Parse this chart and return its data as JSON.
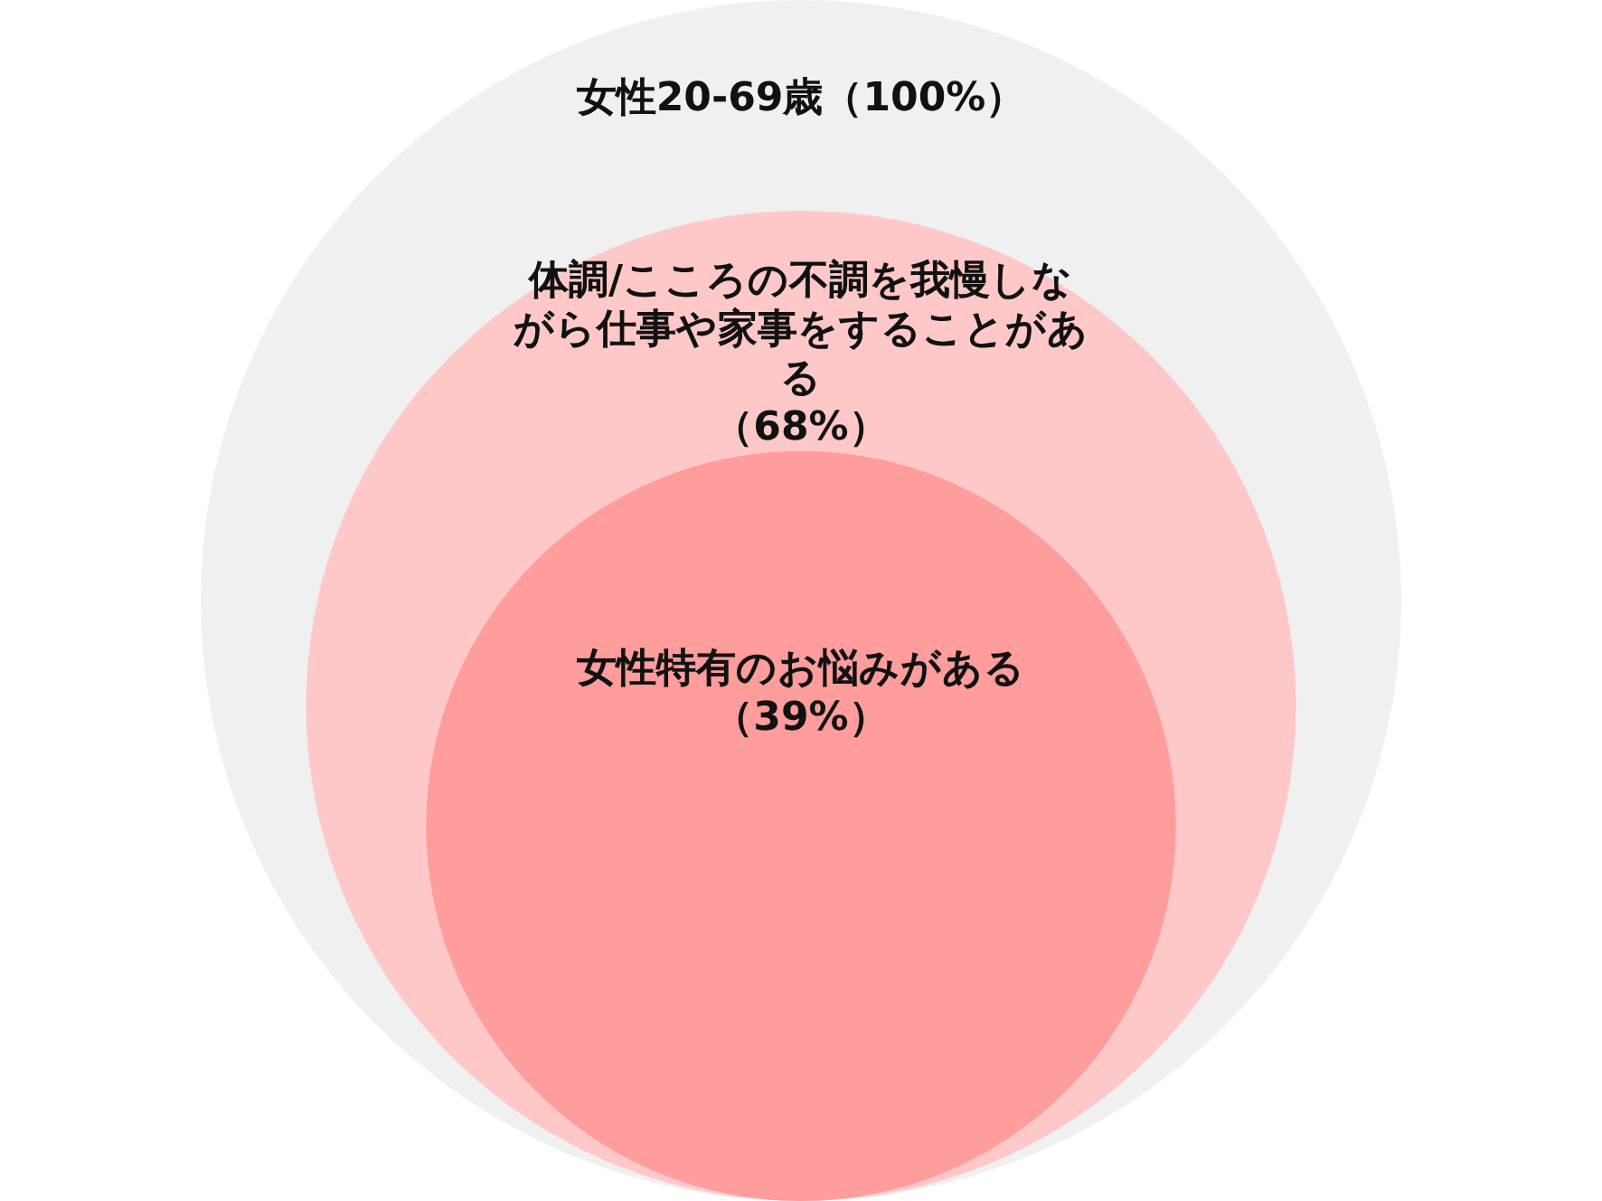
{
  "chart_data": {
    "type": "other",
    "categories": [
      "女性20-69歳",
      "体調/こころの不調を我慢しながら仕事や家事をすることがある",
      "女性特有のお悩みがある"
    ],
    "values": [
      100,
      68,
      39
    ],
    "value_labels": [
      "（100%）",
      "（68%）",
      "（39%）"
    ],
    "colors": [
      "#f0f0f0",
      "#ffc8c8",
      "#ff9c9c"
    ]
  }
}
